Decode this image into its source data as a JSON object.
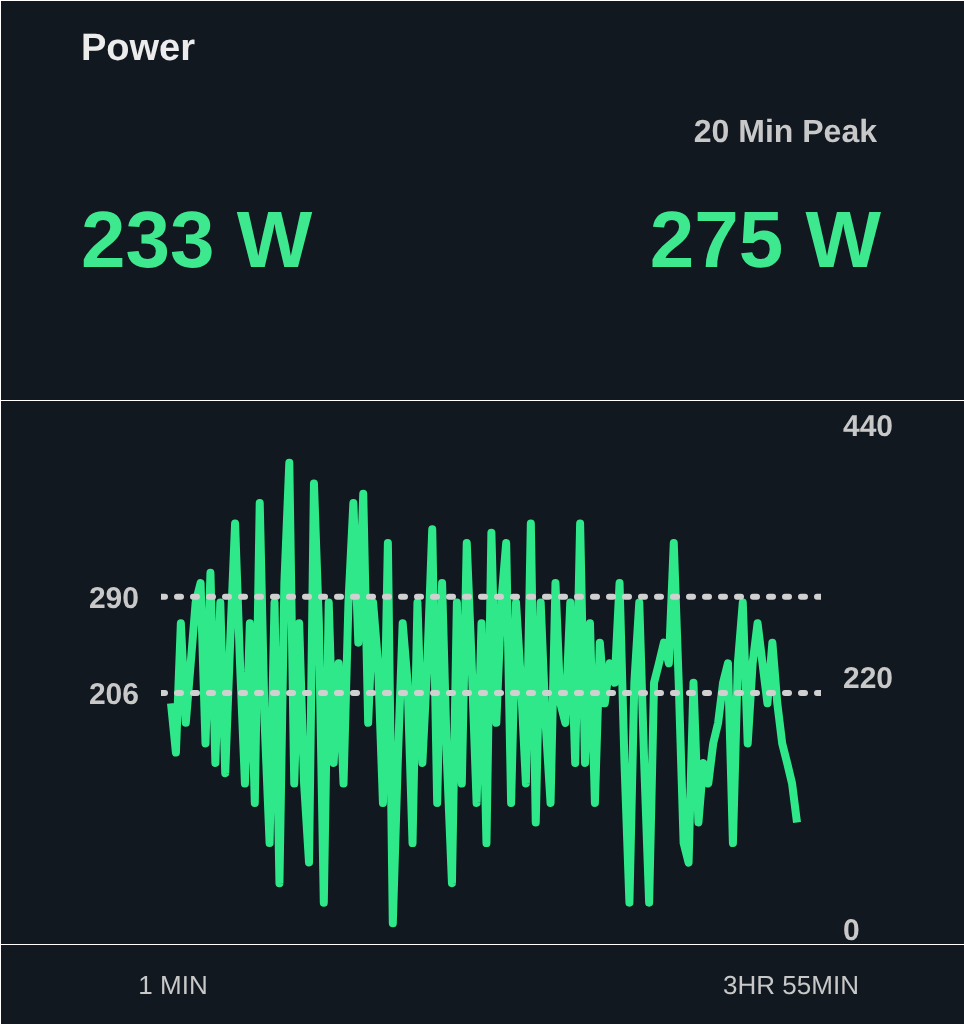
{
  "chart_data": {
    "type": "line",
    "title": "Power",
    "annotations": [
      "20 Min Peak",
      "233 W",
      "275 W",
      "1 MIN",
      "3HR 55MIN"
    ],
    "categories": [
      null,
      null,
      null,
      null,
      null,
      null,
      null,
      null,
      null,
      null,
      null,
      null,
      null,
      null,
      null,
      null,
      null,
      null,
      null,
      null,
      null,
      null,
      null,
      null,
      null,
      null,
      null,
      null,
      null,
      null,
      null,
      null,
      null,
      null,
      null,
      null,
      null,
      null,
      null,
      null,
      null,
      null,
      null,
      null,
      null,
      null,
      null,
      null,
      null,
      null,
      null,
      null,
      null,
      null,
      null,
      null,
      null,
      null,
      null,
      null,
      null,
      null,
      null,
      null,
      null,
      null,
      null,
      null,
      null,
      null,
      null,
      null,
      null,
      null,
      null,
      null,
      null,
      null,
      null,
      null,
      null,
      null,
      null,
      null,
      null,
      null,
      null,
      null,
      null,
      null,
      null,
      null,
      null,
      null,
      null,
      null,
      null,
      null,
      null,
      null,
      null,
      null,
      null,
      null,
      null,
      null,
      null,
      null,
      null,
      null,
      null,
      null,
      null,
      null,
      null,
      null,
      null,
      null,
      null,
      null,
      null,
      null,
      null,
      null,
      null,
      null,
      null,
      null
    ],
    "series": [
      {
        "color": "#2ee88a",
        "values": [
          197,
          154,
          267,
          180,
          232,
          285,
          302,
          162,
          311,
          145,
          285,
          136,
          250,
          354,
          232,
          127,
          267,
          110,
          372,
          180,
          75,
          285,
          40,
          302,
          407,
          127,
          267,
          127,
          58,
          389,
          267,
          23,
          285,
          145,
          232,
          127,
          285,
          372,
          250,
          380,
          180,
          285,
          232,
          110,
          337,
          5,
          145,
          267,
          215,
          75,
          285,
          145,
          232,
          349,
          110,
          302,
          145,
          40,
          285,
          127,
          337,
          232,
          110,
          267,
          75,
          346,
          180,
          285,
          337,
          110,
          285,
          215,
          127,
          354,
          93,
          285,
          180,
          110,
          302,
          197,
          180,
          285,
          145,
          354,
          145,
          267,
          110,
          250,
          197,
          232,
          215,
          302,
          145,
          23,
          215,
          285,
          145,
          23,
          215,
          232,
          250,
          232,
          337,
          215,
          75,
          58,
          215,
          93,
          145,
          127,
          162,
          180,
          215,
          232,
          75,
          232,
          285,
          162,
          232,
          267,
          232,
          197,
          250,
          197,
          162,
          145,
          127,
          93
        ]
      }
    ],
    "ylim": [
      0,
      440
    ],
    "yticks": [
      0,
      220,
      440
    ],
    "ref_lines": [
      {
        "axis": "y",
        "value": 290,
        "label": "290",
        "color": "#d0d0d0",
        "line_style": "dotted"
      },
      {
        "axis": "y",
        "value": 206,
        "label": "206",
        "color": "#d0d0d0",
        "line_style": "dotted"
      }
    ],
    "grid": false,
    "marker": "none",
    "line_style": "solid"
  }
}
